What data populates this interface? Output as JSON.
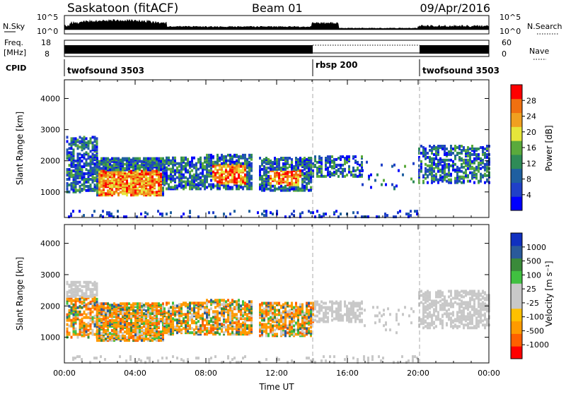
{
  "header": {
    "station": "Saskatoon (fitACF)",
    "beam": "Beam 01",
    "date": "09/Apr/2016"
  },
  "noise_panel": {
    "left_label": "N.Sky",
    "right_label": "N.Search",
    "left_ticks": [
      "10^5",
      "10^0"
    ],
    "right_ticks": [
      "10^5",
      "10^0"
    ]
  },
  "freq_panel": {
    "left_label_line1": "Freq.",
    "left_label_line2": "[MHz]",
    "left_ticks": [
      "18",
      "8"
    ],
    "right_ticks": [
      "60",
      "0"
    ],
    "right_label": "Nave"
  },
  "cpid_panel": {
    "label": "CPID",
    "segments": [
      {
        "name": "twofsound 3503",
        "start_h": 0
      },
      {
        "name": "rbsp 200",
        "start_h": 14
      },
      {
        "name": "twofsound 3503",
        "start_h": 20
      }
    ]
  },
  "colors": {
    "power": [
      "#0000ff",
      "#2040c8",
      "#1f5fa0",
      "#2e8b57",
      "#5aaa3c",
      "#e6e63a",
      "#f0a020",
      "#f07010",
      "#ff0000"
    ],
    "velocity": [
      "#ff0000",
      "#ff6000",
      "#ff9a00",
      "#ffc000",
      "#c8c8c8",
      "#c8c8c8",
      "#40c040",
      "#3a8a3a",
      "#2a5a9a",
      "#1030c0"
    ]
  },
  "chart_data": [
    {
      "type": "heatmap",
      "name": "power",
      "ylabel": "Slant Range [km]",
      "xlabel": "",
      "x_ticks": [],
      "y_ticks": [
        "1000",
        "2000",
        "3000",
        "4000"
      ],
      "ylim": [
        180,
        4600
      ],
      "xlim_hours": [
        0,
        24
      ],
      "colorbar_label": "Power [dB]",
      "colorbar_ticks": [
        "4",
        "8",
        "12",
        "16",
        "20",
        "24",
        "28"
      ],
      "colorbar_range": [
        0,
        32
      ]
    },
    {
      "type": "heatmap",
      "name": "velocity",
      "ylabel": "Slant Range [km]",
      "xlabel": "Time UT",
      "x_ticks": [
        "00:00",
        "04:00",
        "08:00",
        "12:00",
        "16:00",
        "20:00",
        "00:00"
      ],
      "y_ticks": [
        "1000",
        "2000",
        "3000",
        "4000"
      ],
      "ylim": [
        180,
        4600
      ],
      "xlim_hours": [
        0,
        24
      ],
      "colorbar_label": "Velocity [m s⁻¹]",
      "colorbar_ticks": [
        "1000",
        "500",
        "100",
        "25",
        "-25",
        "-100",
        "-500",
        "-1000"
      ]
    }
  ]
}
